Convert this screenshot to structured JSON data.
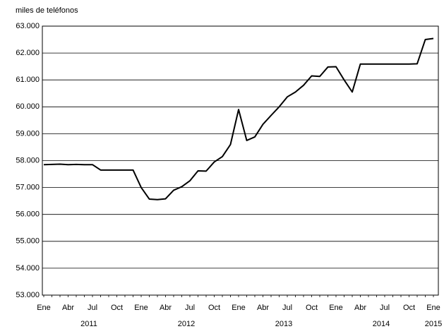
{
  "chart_data": {
    "type": "line",
    "title": "miles de teléfonos",
    "categories": [
      "Ene",
      null,
      null,
      "Abr",
      null,
      null,
      "Jul",
      null,
      null,
      "Oct",
      null,
      null,
      "Ene",
      null,
      null,
      "Abr",
      null,
      null,
      "Jul",
      null,
      null,
      "Oct",
      null,
      null,
      "Ene",
      null,
      null,
      "Abr",
      null,
      null,
      "Jul",
      null,
      null,
      "Oct",
      null,
      null,
      "Ene",
      null,
      null,
      "Abr",
      null,
      null,
      "Jul",
      null,
      null,
      "Oct",
      null,
      null,
      "Ene"
    ],
    "year_labels": [
      "2011",
      "2012",
      "2013",
      "2014",
      "2015"
    ],
    "series": [
      {
        "name": "miles de teléfonos",
        "color": "#000000",
        "values": [
          57850,
          57860,
          57870,
          57850,
          57860,
          57850,
          57850,
          57650,
          57650,
          57650,
          57650,
          57650,
          57000,
          56570,
          56550,
          56580,
          56900,
          57030,
          57250,
          57620,
          57610,
          57950,
          58150,
          58600,
          59900,
          58750,
          58880,
          59350,
          59680,
          60000,
          60370,
          60550,
          60800,
          61150,
          61130,
          61480,
          61490,
          61000,
          60550,
          61590,
          61590,
          61590,
          61590,
          61590,
          61590,
          61590,
          61600,
          62500,
          62540
        ]
      }
    ],
    "ylim": [
      53000,
      63000
    ],
    "yticks": [
      {
        "value": 53000,
        "label": "53.000"
      },
      {
        "value": 54000,
        "label": "54.000"
      },
      {
        "value": 55000,
        "label": "55.000"
      },
      {
        "value": 56000,
        "label": "56.000"
      },
      {
        "value": 57000,
        "label": "57.000"
      },
      {
        "value": 58000,
        "label": "58.000"
      },
      {
        "value": 59000,
        "label": "59.000"
      },
      {
        "value": 60000,
        "label": "60.000"
      },
      {
        "value": 61000,
        "label": "61.000"
      },
      {
        "value": 62000,
        "label": "62.000"
      },
      {
        "value": 63000,
        "label": "63.000"
      }
    ],
    "grid": true
  }
}
